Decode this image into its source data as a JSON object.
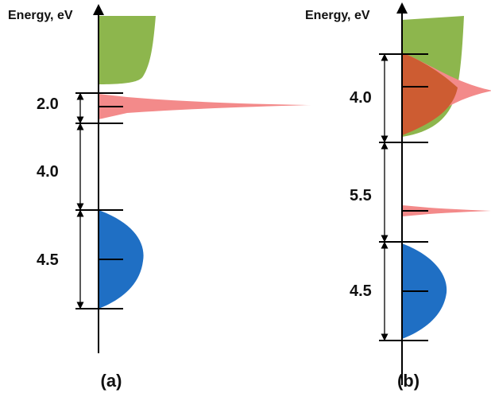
{
  "axis_title": "Energy, eV",
  "colors": {
    "conduction_band": "#8db64d",
    "valence_band": "#1f6fc4",
    "defect_band": "#f38a8a",
    "overlap_band": "#cd5c32",
    "axis": "#000000"
  },
  "panels": [
    {
      "id": "a",
      "label": "(a)",
      "gaps": [
        {
          "label": "2.0"
        },
        {
          "label": "4.0"
        },
        {
          "label": "4.5"
        }
      ]
    },
    {
      "id": "b",
      "label": "(b)",
      "gaps": [
        {
          "label": "4.0"
        },
        {
          "label": "5.5"
        },
        {
          "label": "4.5"
        }
      ]
    }
  ]
}
